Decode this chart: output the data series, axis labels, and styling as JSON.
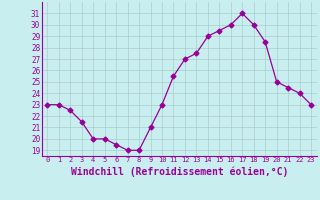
{
  "x": [
    0,
    1,
    2,
    3,
    4,
    5,
    6,
    7,
    8,
    9,
    10,
    11,
    12,
    13,
    14,
    15,
    16,
    17,
    18,
    19,
    20,
    21,
    22,
    23
  ],
  "y": [
    23,
    23,
    22.5,
    21.5,
    20,
    20,
    19.5,
    19,
    19,
    21,
    23,
    25.5,
    27,
    27.5,
    29,
    29.5,
    30,
    31,
    30,
    28.5,
    25,
    24.5,
    24,
    23
  ],
  "line_color": "#990099",
  "marker": "D",
  "marker_size": 2.5,
  "bg_color": "#c8eef0",
  "grid_color": "#aacccc",
  "xlabel": "Windchill (Refroidissement éolien,°C)",
  "xlabel_fontsize": 7,
  "ytick_labels": [
    "19",
    "20",
    "21",
    "22",
    "23",
    "24",
    "25",
    "26",
    "27",
    "28",
    "29",
    "30",
    "31"
  ],
  "ytick_vals": [
    19,
    20,
    21,
    22,
    23,
    24,
    25,
    26,
    27,
    28,
    29,
    30,
    31
  ],
  "xtick_vals": [
    0,
    1,
    2,
    3,
    4,
    5,
    6,
    7,
    8,
    9,
    10,
    11,
    12,
    13,
    14,
    15,
    16,
    17,
    18,
    19,
    20,
    21,
    22,
    23
  ],
  "ylim": [
    18.5,
    32.0
  ],
  "xlim": [
    -0.5,
    23.5
  ]
}
